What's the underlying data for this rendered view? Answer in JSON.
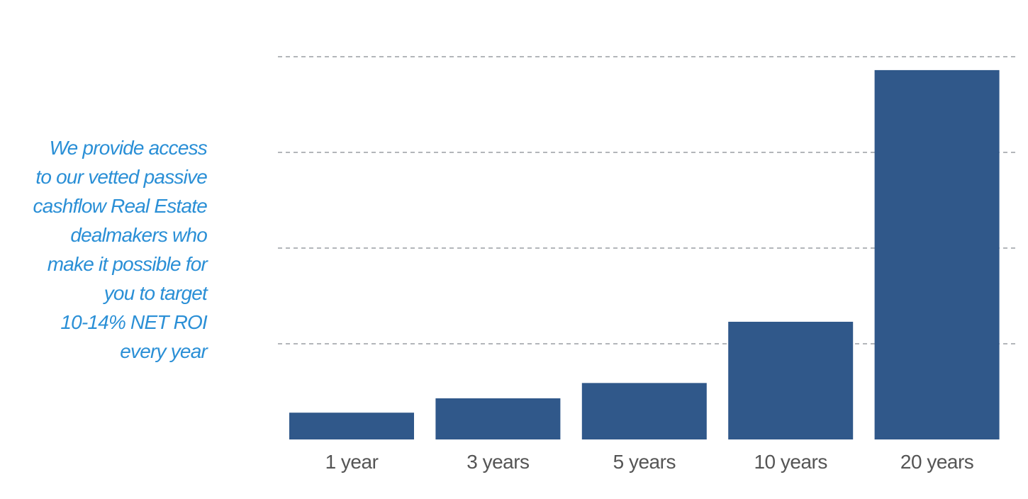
{
  "blurb": {
    "lines": [
      "We provide access",
      "to our vetted passive",
      "cashflow Real Estate",
      "dealmakers who",
      "make it possible for",
      "you to target",
      "10-14% NET ROI",
      "every year"
    ],
    "color": "#2a8fd6"
  },
  "chart_data": {
    "type": "bar",
    "categories": [
      "1 year",
      "3 years",
      "5 years",
      "10 years",
      "20 years"
    ],
    "values": [
      1.4,
      2.15,
      2.95,
      6.15,
      19.3
    ],
    "ylim": [
      0,
      20
    ],
    "gridlines": [
      5,
      10,
      15,
      20
    ],
    "grid": true,
    "grid_style": "dashed",
    "bar_color": "#30588a",
    "title": "",
    "xlabel": "",
    "ylabel": ""
  }
}
